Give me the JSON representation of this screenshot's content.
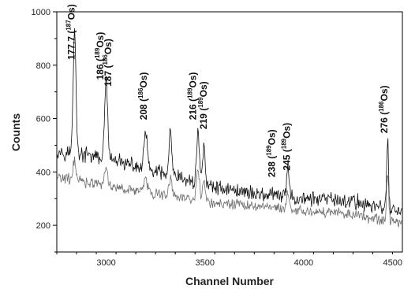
{
  "chart_data": {
    "type": "line",
    "title": "",
    "xlabel": "Channel Number",
    "ylabel": "Counts",
    "xlim": [
      2750,
      4500
    ],
    "ylim": [
      100,
      1000
    ],
    "x_ticks": [
      3000,
      3500,
      4000,
      4500
    ],
    "y_ticks": [
      200,
      400,
      600,
      800,
      1000
    ],
    "grid": false,
    "legend": "none",
    "series": [
      {
        "color": "#111111",
        "baseline": [
          [
            2750,
            480
          ],
          [
            3000,
            450
          ],
          [
            3250,
            400
          ],
          [
            3500,
            350
          ],
          [
            3750,
            320
          ],
          [
            4000,
            300
          ],
          [
            4250,
            290
          ],
          [
            4500,
            250
          ]
        ],
        "noise_amplitude": 35,
        "peaks": [
          [
            2840,
            470,
            7
          ],
          [
            3000,
            310,
            7
          ],
          [
            3200,
            140,
            8
          ],
          [
            3325,
            160,
            7
          ],
          [
            3465,
            200,
            7
          ],
          [
            3495,
            160,
            6
          ],
          [
            3920,
            120,
            6
          ],
          [
            4425,
            250,
            5
          ]
        ]
      },
      {
        "color": "#6e6e6e",
        "baseline": [
          [
            2750,
            380
          ],
          [
            3000,
            350
          ],
          [
            3250,
            320
          ],
          [
            3500,
            290
          ],
          [
            3750,
            270
          ],
          [
            4000,
            255
          ],
          [
            4250,
            240
          ],
          [
            4500,
            210
          ]
        ],
        "noise_amplitude": 25,
        "peaks": [
          [
            2840,
            80,
            7
          ],
          [
            3000,
            70,
            7
          ],
          [
            3200,
            50,
            8
          ],
          [
            3325,
            70,
            7
          ],
          [
            3465,
            110,
            7
          ],
          [
            3495,
            80,
            6
          ],
          [
            3920,
            60,
            6
          ],
          [
            4425,
            180,
            5
          ]
        ]
      }
    ],
    "peak_annotations": [
      {
        "value": "177.7",
        "mass": "187",
        "isotope": "Os",
        "channel": 2840,
        "counts": 820
      },
      {
        "value": "186",
        "mass": "189",
        "isotope": "Os",
        "channel": 2985,
        "counts": 745
      },
      {
        "value": "187",
        "mass": "186",
        "isotope": "Os",
        "channel": 3025,
        "counts": 720
      },
      {
        "value": "208",
        "mass": "186",
        "isotope": "Os",
        "channel": 3205,
        "counts": 595
      },
      {
        "value": "216",
        "mass": "189",
        "isotope": "Os",
        "channel": 3455,
        "counts": 595
      },
      {
        "value": "219",
        "mass": "189",
        "isotope": "Os",
        "channel": 3510,
        "counts": 560
      },
      {
        "value": "238",
        "mass": "189",
        "isotope": "Os",
        "channel": 3855,
        "counts": 380
      },
      {
        "value": "245",
        "mass": "189",
        "isotope": "Os",
        "channel": 3930,
        "counts": 405
      },
      {
        "value": "276",
        "mass": "186",
        "isotope": "Os",
        "channel": 4425,
        "counts": 545
      }
    ]
  }
}
